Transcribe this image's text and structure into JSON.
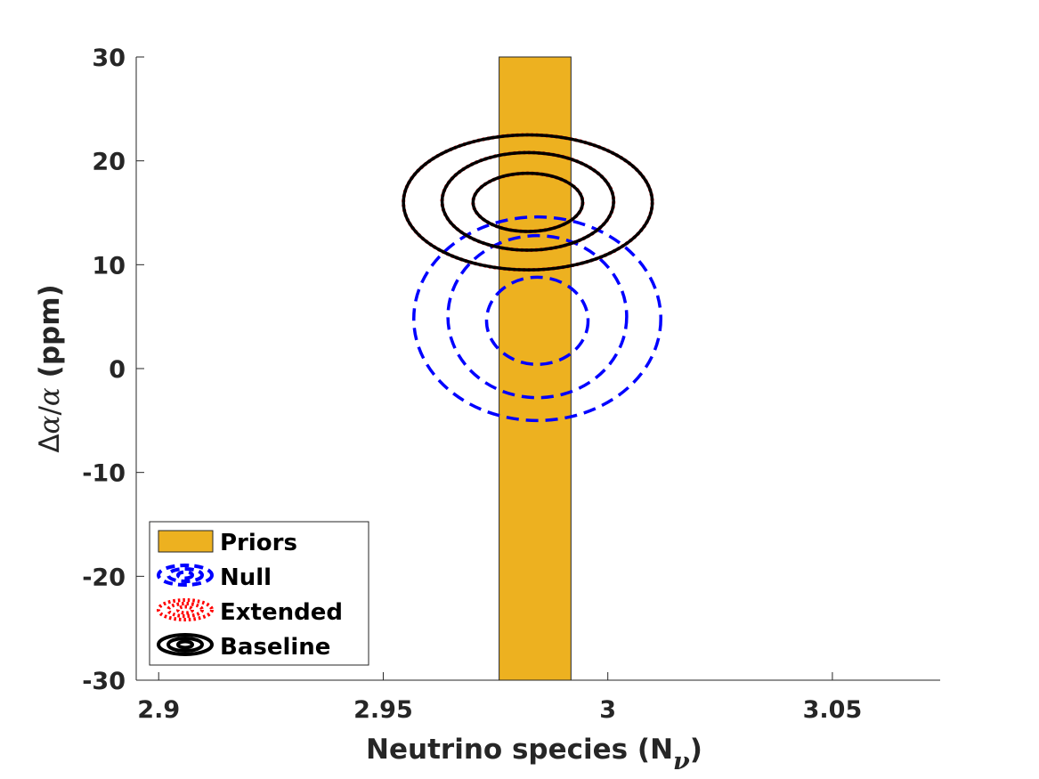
{
  "chart_data": {
    "type": "contour",
    "xlabel": "Neutrino species (N",
    "xlabel_sub": "ν",
    "xlabel_end": ")",
    "ylabel_delta": "Δ",
    "ylabel_alpha": "α",
    "ylabel_slash": "/",
    "ylabel_unit": " (ppm)",
    "xlim": [
      2.895,
      3.074
    ],
    "ylim": [
      -30,
      30
    ],
    "xticks": [
      2.9,
      2.95,
      3.0,
      3.05
    ],
    "xtick_labels": [
      "2.9",
      "2.95",
      "3",
      "3.05"
    ],
    "yticks": [
      -30,
      -20,
      -10,
      0,
      10,
      20,
      30
    ],
    "ytick_labels": [
      "-30",
      "-20",
      "-10",
      "0",
      "10",
      "20",
      "30"
    ],
    "legend_position": "bottom-left",
    "prior": {
      "name": "Priors",
      "x_range": [
        2.9758,
        2.9918
      ],
      "y_range": [
        -30,
        30
      ],
      "color": "#EDB120"
    },
    "series": [
      {
        "name": "Null",
        "style": "dashed",
        "color": "#0000FF",
        "contours": [
          {
            "cx": 2.9843,
            "cy": 4.6,
            "rx": 0.0113,
            "ry": 4.2
          },
          {
            "cx": 2.9843,
            "cy": 5.0,
            "rx": 0.0199,
            "ry": 7.8
          },
          {
            "cx": 2.9843,
            "cy": 4.8,
            "rx": 0.0275,
            "ry": 9.8
          }
        ]
      },
      {
        "name": "Extended",
        "style": "dotted",
        "color": "#FF0000",
        "contours": [
          {
            "cx": 2.9822,
            "cy": 16.0,
            "rx": 0.0122,
            "ry": 2.8
          },
          {
            "cx": 2.9822,
            "cy": 16.1,
            "rx": 0.0191,
            "ry": 4.7
          },
          {
            "cx": 2.9822,
            "cy": 16.0,
            "rx": 0.0277,
            "ry": 6.5
          }
        ]
      },
      {
        "name": "Baseline",
        "style": "solid",
        "color": "#000000",
        "contours": [
          {
            "cx": 2.9822,
            "cy": 16.0,
            "rx": 0.0122,
            "ry": 2.8
          },
          {
            "cx": 2.9822,
            "cy": 16.1,
            "rx": 0.0191,
            "ry": 4.7
          },
          {
            "cx": 2.9822,
            "cy": 16.0,
            "rx": 0.0277,
            "ry": 6.5
          }
        ]
      }
    ]
  }
}
